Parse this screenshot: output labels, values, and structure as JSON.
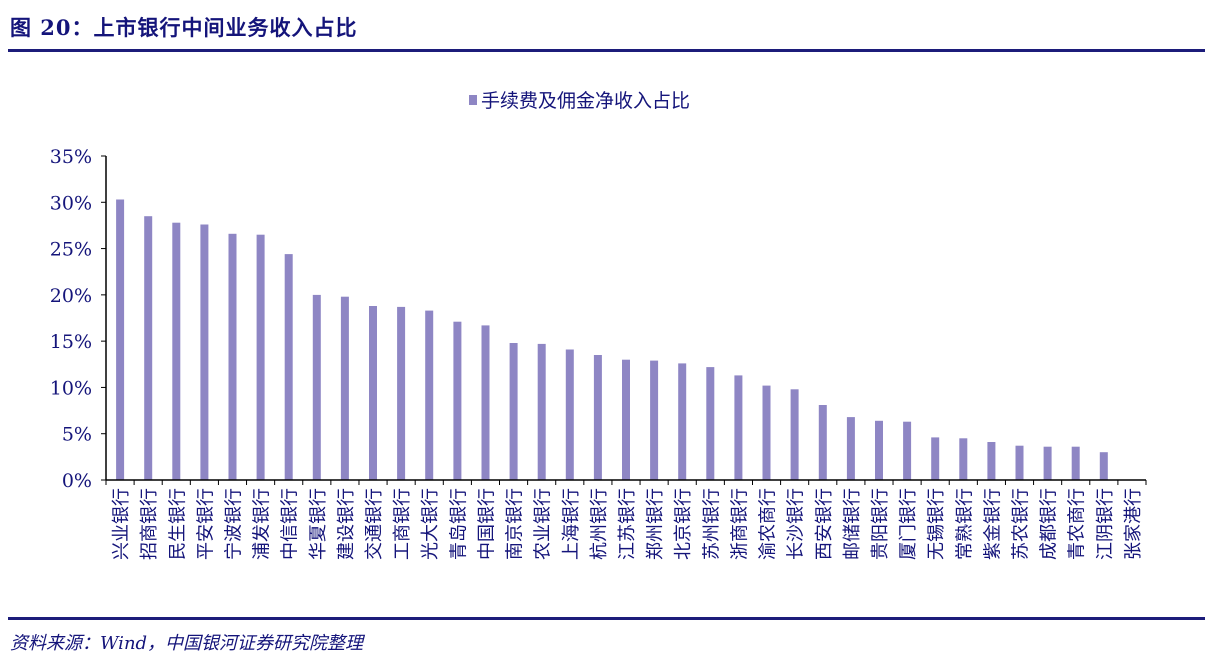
{
  "title": "图 20：上市银行中间业务收入占比",
  "source": "资料来源：Wind，中国银河证券研究院整理",
  "chart_data": {
    "type": "bar",
    "legend": "手续费及佣金净收入占比",
    "legend_position": "top-center",
    "bar_color": "#8e86c4",
    "categories": [
      "兴业银行",
      "招商银行",
      "民生银行",
      "平安银行",
      "宁波银行",
      "浦发银行",
      "中信银行",
      "华夏银行",
      "建设银行",
      "交通银行",
      "工商银行",
      "光大银行",
      "青岛银行",
      "中国银行",
      "南京银行",
      "农业银行",
      "上海银行",
      "杭州银行",
      "江苏银行",
      "郑州银行",
      "北京银行",
      "苏州银行",
      "浙商银行",
      "渝农商行",
      "长沙银行",
      "西安银行",
      "邮储银行",
      "贵阳银行",
      "厦门银行",
      "无锡银行",
      "常熟银行",
      "紫金银行",
      "苏农银行",
      "成都银行",
      "青农商行",
      "江阴银行",
      "张家港行"
    ],
    "values": [
      30.3,
      28.5,
      27.8,
      27.6,
      26.6,
      26.5,
      24.4,
      20.0,
      19.8,
      18.8,
      18.7,
      18.3,
      17.1,
      16.7,
      14.8,
      14.7,
      14.1,
      13.5,
      13.0,
      12.9,
      12.6,
      12.2,
      11.3,
      10.2,
      9.8,
      8.1,
      6.8,
      6.4,
      6.3,
      4.6,
      4.5,
      4.1,
      3.7,
      3.6,
      3.6,
      3.0,
      0.0
    ],
    "yticks": [
      "0%",
      "5%",
      "10%",
      "15%",
      "20%",
      "25%",
      "30%",
      "35%"
    ],
    "ylim": [
      0,
      35
    ],
    "grid": false
  }
}
